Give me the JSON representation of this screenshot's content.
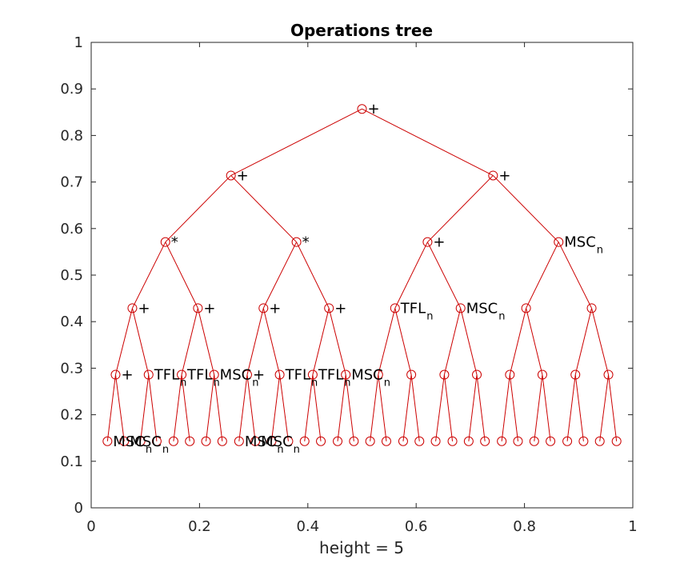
{
  "chart_data": {
    "type": "scatter",
    "title": "Operations tree",
    "xlabel": "height = 5",
    "ylabel": "",
    "xlim": [
      0,
      1
    ],
    "ylim": [
      0,
      1
    ],
    "xticks": [
      "0",
      "0.2",
      "0.4",
      "0.6",
      "0.8",
      "1"
    ],
    "yticks": [
      "0",
      "0.1",
      "0.2",
      "0.3",
      "0.4",
      "0.5",
      "0.6",
      "0.7",
      "0.8",
      "0.9",
      "1"
    ],
    "grid": false,
    "line_color": "#cc0000",
    "marker": "circle",
    "levels": [
      {
        "y": 0.857,
        "x": [
          0.5
        ]
      },
      {
        "y": 0.714,
        "x": [
          0.258,
          0.742
        ]
      },
      {
        "y": 0.571,
        "x": [
          0.137,
          0.379,
          0.621,
          0.863
        ]
      },
      {
        "y": 0.429,
        "x": [
          0.076,
          0.197,
          0.318,
          0.439,
          0.561,
          0.682,
          0.803,
          0.924
        ]
      },
      {
        "y": 0.286,
        "x": [
          0.045,
          0.106,
          0.167,
          0.227,
          0.288,
          0.348,
          0.409,
          0.47,
          0.53,
          0.591,
          0.652,
          0.712,
          0.773,
          0.833,
          0.894,
          0.955
        ]
      },
      {
        "y": 0.143,
        "x": [
          0.03,
          0.061,
          0.091,
          0.121,
          0.152,
          0.182,
          0.212,
          0.242,
          0.273,
          0.303,
          0.333,
          0.364,
          0.394,
          0.424,
          0.455,
          0.485,
          0.515,
          0.545,
          0.576,
          0.606,
          0.636,
          0.667,
          0.697,
          0.727,
          0.758,
          0.788,
          0.818,
          0.848,
          0.879,
          0.909,
          0.939,
          0.97
        ]
      }
    ],
    "annotations": [
      {
        "level": 0,
        "index": 0,
        "text": "+",
        "sub": ""
      },
      {
        "level": 1,
        "index": 0,
        "text": "+",
        "sub": ""
      },
      {
        "level": 1,
        "index": 1,
        "text": "+",
        "sub": ""
      },
      {
        "level": 2,
        "index": 0,
        "text": "*",
        "sub": ""
      },
      {
        "level": 2,
        "index": 1,
        "text": "*",
        "sub": ""
      },
      {
        "level": 2,
        "index": 2,
        "text": "+",
        "sub": ""
      },
      {
        "level": 2,
        "index": 3,
        "text": "MSC",
        "sub": "n"
      },
      {
        "level": 3,
        "index": 0,
        "text": "+",
        "sub": ""
      },
      {
        "level": 3,
        "index": 1,
        "text": "+",
        "sub": ""
      },
      {
        "level": 3,
        "index": 2,
        "text": "+",
        "sub": ""
      },
      {
        "level": 3,
        "index": 3,
        "text": "+",
        "sub": ""
      },
      {
        "level": 3,
        "index": 4,
        "text": "TFL",
        "sub": "n"
      },
      {
        "level": 3,
        "index": 5,
        "text": "MSC",
        "sub": "n"
      },
      {
        "level": 4,
        "index": 0,
        "text": "+",
        "sub": ""
      },
      {
        "level": 4,
        "index": 1,
        "text": "TFL",
        "sub": "n"
      },
      {
        "level": 4,
        "index": 2,
        "text": "TFL",
        "sub": "n"
      },
      {
        "level": 4,
        "index": 3,
        "text": "MSC",
        "sub": "n"
      },
      {
        "level": 4,
        "index": 4,
        "text": "+",
        "sub": ""
      },
      {
        "level": 4,
        "index": 5,
        "text": "TFL",
        "sub": "n"
      },
      {
        "level": 4,
        "index": 6,
        "text": "TFL",
        "sub": "n"
      },
      {
        "level": 4,
        "index": 7,
        "text": "MSC",
        "sub": "n"
      },
      {
        "level": 5,
        "index": 0,
        "text": "MSC",
        "sub": "n"
      },
      {
        "level": 5,
        "index": 1,
        "text": "MSC",
        "sub": "n"
      },
      {
        "level": 5,
        "index": 8,
        "text": "MSC",
        "sub": "n"
      },
      {
        "level": 5,
        "index": 9,
        "text": "MSC",
        "sub": "n"
      }
    ]
  }
}
